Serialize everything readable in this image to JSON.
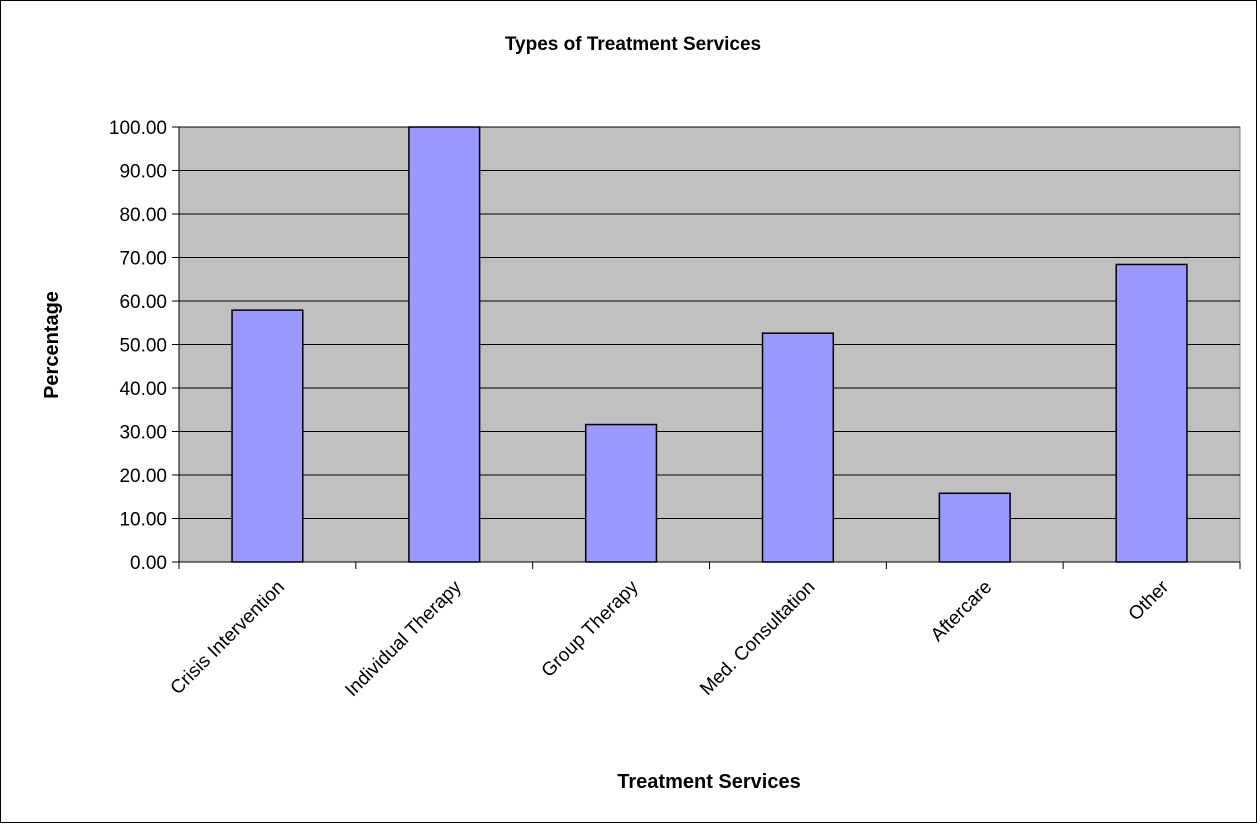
{
  "chart_data": {
    "type": "bar",
    "title": "Types of Treatment Services",
    "xlabel": "Treatment Services",
    "ylabel": "Percentage",
    "categories": [
      "Crisis Intervention",
      "Individual Therapy",
      "Group Therapy",
      "Med. Consultation",
      "Aftercare",
      "Other"
    ],
    "values": [
      57.9,
      100.0,
      31.6,
      52.6,
      15.8,
      68.4
    ],
    "ylim": [
      0,
      100
    ],
    "yticks": [
      "0.00",
      "10.00",
      "20.00",
      "30.00",
      "40.00",
      "50.00",
      "60.00",
      "70.00",
      "80.00",
      "90.00",
      "100.00"
    ],
    "grid": true,
    "legend": "none",
    "colors": {
      "bar_fill": "#9999ff",
      "bar_stroke": "#000000",
      "plot_background": "#c0c0c0",
      "gridline": "#000000"
    }
  }
}
